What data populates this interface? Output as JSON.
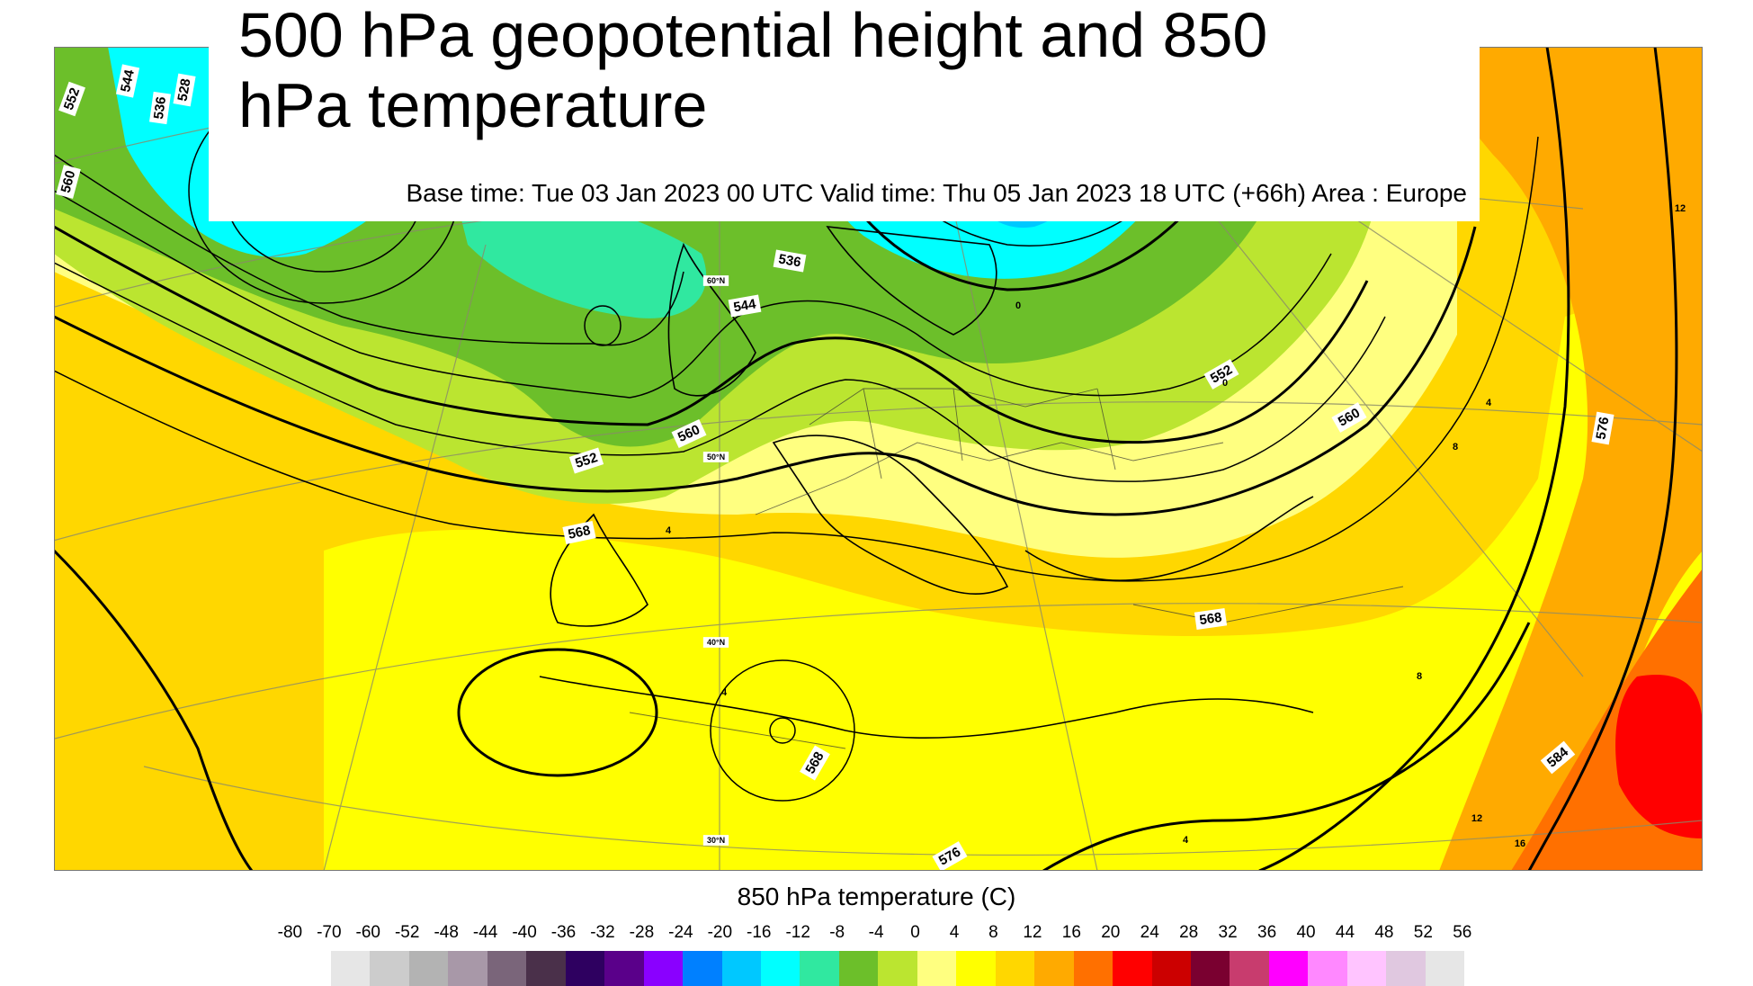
{
  "title": "500 hPa geopotential height and 850 hPa temperature",
  "subtitle": "Base time: Tue 03 Jan 2023 00 UTC Valid time: Thu 05 Jan 2023 18 UTC (+66h) Area : Europe",
  "legend": {
    "title": "850 hPa temperature (C)",
    "ticks": [
      "-80",
      "-70",
      "-60",
      "-52",
      "-48",
      "-44",
      "-40",
      "-36",
      "-32",
      "-28",
      "-24",
      "-20",
      "-16",
      "-12",
      "-8",
      "-4",
      "0",
      "4",
      "8",
      "12",
      "16",
      "20",
      "24",
      "28",
      "32",
      "36",
      "40",
      "44",
      "48",
      "52",
      "56"
    ],
    "colors": [
      "#e6e6e6",
      "#cccccc",
      "#b3b3b3",
      "#a898a8",
      "#7a657a",
      "#4a304a",
      "#2e0060",
      "#5a008a",
      "#8a00ff",
      "#0080ff",
      "#00c8ff",
      "#00ffff",
      "#30e8a0",
      "#6cbf2a",
      "#bbe530",
      "#ffff80",
      "#ffff00",
      "#ffd700",
      "#ffaa00",
      "#ff7000",
      "#ff0000",
      "#cc0000",
      "#7a0030",
      "#c83c6e",
      "#ff00ff",
      "#ff88ff",
      "#ffc4ff",
      "#e0c8e0",
      "#e6e6e6"
    ]
  },
  "map": {
    "contour_labels": [
      {
        "text": "544"
      },
      {
        "text": "536"
      },
      {
        "text": "528"
      },
      {
        "text": "552"
      },
      {
        "text": "560"
      },
      {
        "text": "536"
      },
      {
        "text": "544"
      },
      {
        "text": "552"
      },
      {
        "text": "560"
      },
      {
        "text": "568"
      },
      {
        "text": "552"
      },
      {
        "text": "560"
      },
      {
        "text": "576"
      },
      {
        "text": "568"
      },
      {
        "text": "568"
      },
      {
        "text": "584"
      },
      {
        "text": "576"
      }
    ],
    "temperature_labels": [
      {
        "text": "4"
      },
      {
        "text": "0"
      },
      {
        "text": "4"
      },
      {
        "text": "4"
      },
      {
        "text": "8"
      },
      {
        "text": "8"
      },
      {
        "text": "12"
      },
      {
        "text": "16"
      },
      {
        "text": "12"
      },
      {
        "text": "4"
      },
      {
        "text": "4"
      },
      {
        "text": "0"
      }
    ],
    "graticule_labels": [
      {
        "text": "60°N"
      },
      {
        "text": "50°N"
      },
      {
        "text": "40°N"
      },
      {
        "text": "30°N"
      }
    ]
  }
}
